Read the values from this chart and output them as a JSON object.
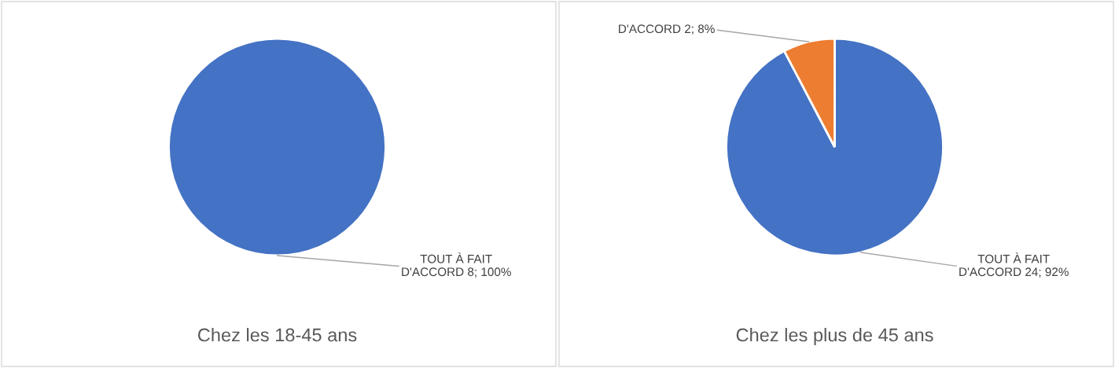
{
  "chart_data": [
    {
      "type": "pie",
      "title": "Chez les 18-45 ans",
      "categories": [
        "TOUT À FAIT D'ACCORD"
      ],
      "values": [
        8
      ],
      "colors": [
        "#4472c4"
      ],
      "value_labels": [
        "8; 100%"
      ]
    },
    {
      "type": "pie",
      "title": "Chez les plus de 45 ans",
      "categories": [
        "TOUT À FAIT D'ACCORD",
        "D'ACCORD"
      ],
      "values": [
        24,
        2
      ],
      "colors": [
        "#4472c4",
        "#ed7d31"
      ],
      "value_labels": [
        "24; 92%",
        "2; 8%"
      ]
    }
  ]
}
